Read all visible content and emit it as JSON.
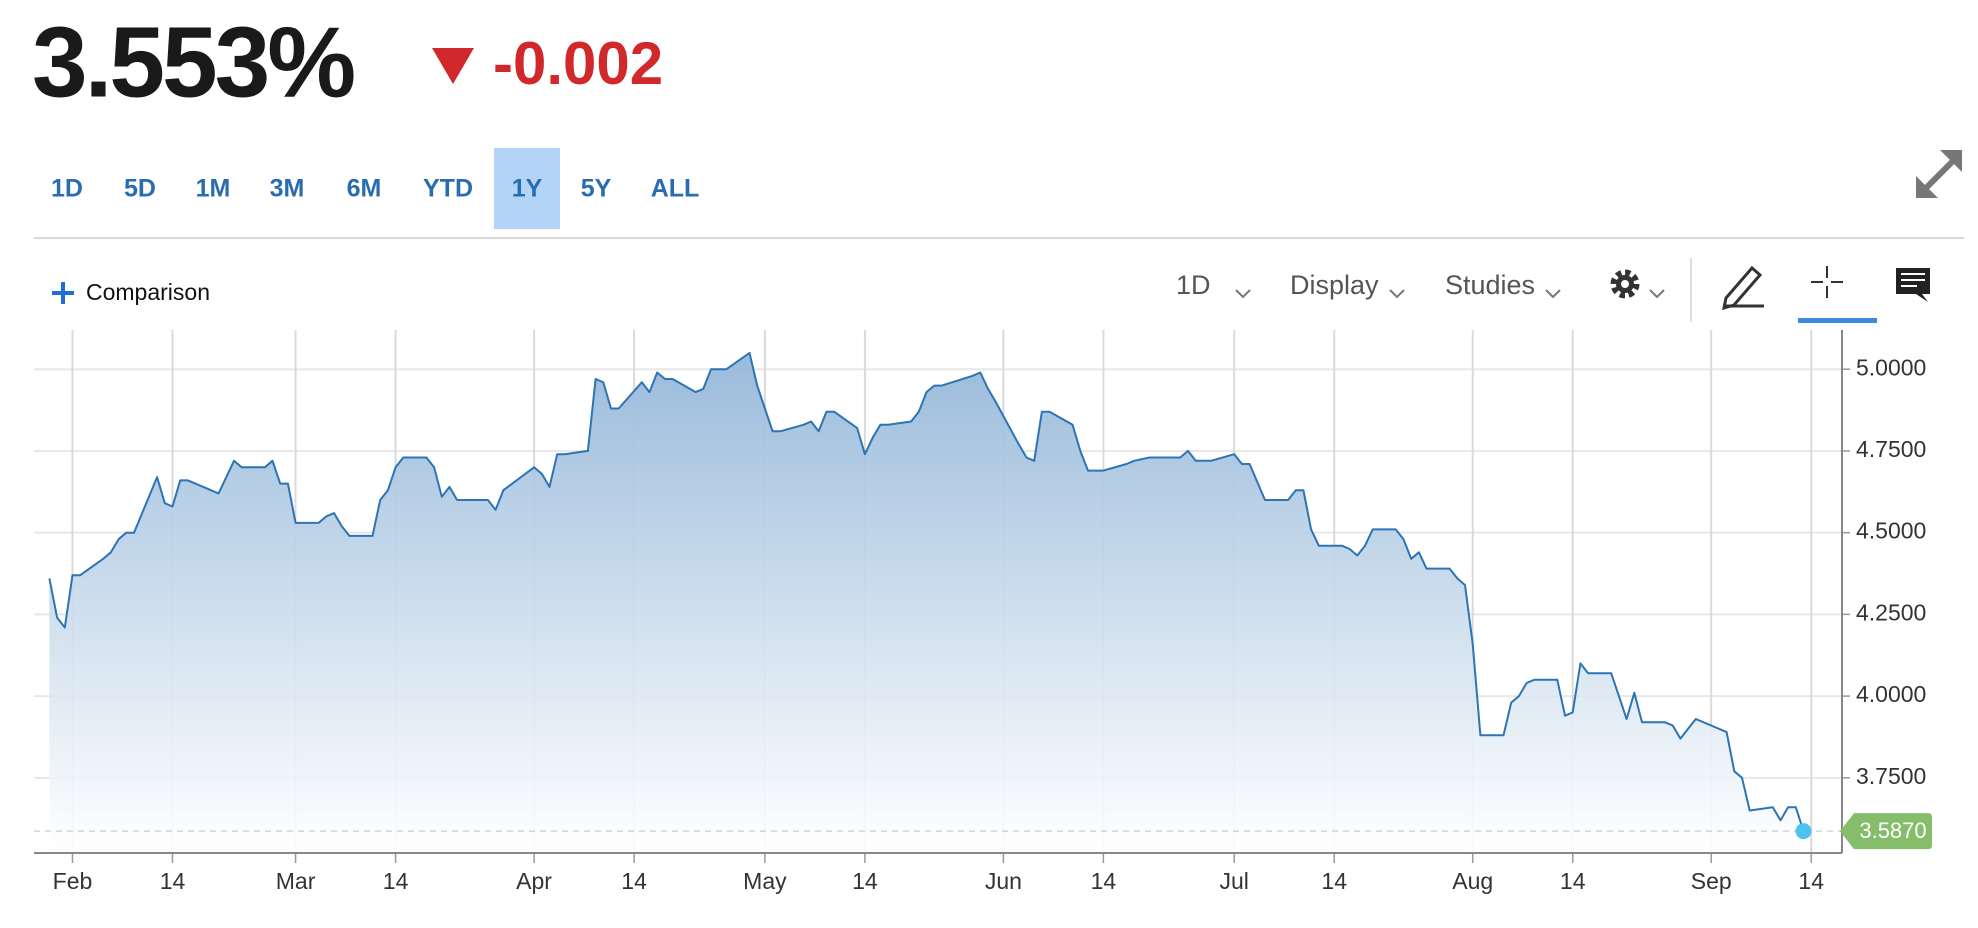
{
  "quote": {
    "price": "3.553%",
    "change": "-0.002"
  },
  "ranges": [
    "1D",
    "5D",
    "1M",
    "3M",
    "6M",
    "YTD",
    "1Y",
    "5Y",
    "ALL"
  ],
  "active_range": "1Y",
  "toolbar": {
    "comparison": "Comparison",
    "interval": "1D",
    "display": "Display",
    "studies": "Studies"
  },
  "chart_data": {
    "type": "area",
    "color": "#2c74b3",
    "x": [
      "01-29",
      "01-30",
      "01-31",
      "02-01",
      "02-02",
      "02-05",
      "02-06",
      "02-07",
      "02-08",
      "02-09",
      "02-12",
      "02-13",
      "02-14",
      "02-15",
      "02-16",
      "02-20",
      "02-21",
      "02-22",
      "02-23",
      "02-26",
      "02-27",
      "02-28",
      "02-29",
      "03-01",
      "03-04",
      "03-05",
      "03-06",
      "03-07",
      "03-08",
      "03-11",
      "03-12",
      "03-13",
      "03-14",
      "03-15",
      "03-18",
      "03-19",
      "03-20",
      "03-21",
      "03-22",
      "03-25",
      "03-26",
      "03-27",
      "03-28",
      "04-01",
      "04-02",
      "04-03",
      "04-04",
      "04-05",
      "04-08",
      "04-09",
      "04-10",
      "04-11",
      "04-12",
      "04-15",
      "04-16",
      "04-17",
      "04-18",
      "04-19",
      "04-22",
      "04-23",
      "04-24",
      "04-25",
      "04-26",
      "04-29",
      "04-30",
      "05-01",
      "05-02",
      "05-03",
      "05-06",
      "05-07",
      "05-08",
      "05-09",
      "05-10",
      "05-13",
      "05-14",
      "05-15",
      "05-16",
      "05-17",
      "05-20",
      "05-21",
      "05-22",
      "05-23",
      "05-24",
      "05-28",
      "05-29",
      "05-30",
      "05-31",
      "06-03",
      "06-04",
      "06-05",
      "06-06",
      "06-07",
      "06-10",
      "06-11",
      "06-12",
      "06-13",
      "06-14",
      "06-17",
      "06-18",
      "06-20",
      "06-21",
      "06-24",
      "06-25",
      "06-26",
      "06-27",
      "06-28",
      "07-01",
      "07-02",
      "07-03",
      "07-05",
      "07-08",
      "07-09",
      "07-10",
      "07-11",
      "07-12",
      "07-15",
      "07-16",
      "07-17",
      "07-18",
      "07-19",
      "07-22",
      "07-23",
      "07-24",
      "07-25",
      "07-26",
      "07-29",
      "07-30",
      "07-31",
      "08-01",
      "08-02",
      "08-05",
      "08-06",
      "08-07",
      "08-08",
      "08-09",
      "08-12",
      "08-13",
      "08-14",
      "08-15",
      "08-16",
      "08-19",
      "08-20",
      "08-21",
      "08-22",
      "08-23",
      "08-26",
      "08-27",
      "08-28",
      "08-29",
      "08-30",
      "09-03",
      "09-04",
      "09-05",
      "09-06",
      "09-09",
      "09-10",
      "09-11",
      "09-12",
      "09-13"
    ],
    "values": [
      4.36,
      4.24,
      4.21,
      4.37,
      4.37,
      4.42,
      4.44,
      4.48,
      4.5,
      4.5,
      4.67,
      4.59,
      4.58,
      4.66,
      4.66,
      4.62,
      4.67,
      4.72,
      4.7,
      4.7,
      4.72,
      4.65,
      4.65,
      4.53,
      4.53,
      4.55,
      4.56,
      4.52,
      4.49,
      4.49,
      4.6,
      4.63,
      4.7,
      4.73,
      4.73,
      4.7,
      4.61,
      4.64,
      4.6,
      4.6,
      4.6,
      4.57,
      4.63,
      4.7,
      4.68,
      4.64,
      4.74,
      4.74,
      4.75,
      4.97,
      4.96,
      4.88,
      4.88,
      4.96,
      4.93,
      4.99,
      4.97,
      4.97,
      4.93,
      4.94,
      5.0,
      5.0,
      5.0,
      5.05,
      4.95,
      4.88,
      4.81,
      4.81,
      4.83,
      4.84,
      4.81,
      4.87,
      4.87,
      4.82,
      4.74,
      4.79,
      4.83,
      4.83,
      4.84,
      4.87,
      4.93,
      4.95,
      4.95,
      4.98,
      4.99,
      4.94,
      4.9,
      4.77,
      4.73,
      4.72,
      4.87,
      4.87,
      4.83,
      4.75,
      4.69,
      4.69,
      4.69,
      4.71,
      4.72,
      4.73,
      4.73,
      4.73,
      4.75,
      4.72,
      4.72,
      4.72,
      4.74,
      4.71,
      4.71,
      4.6,
      4.6,
      4.63,
      4.63,
      4.51,
      4.46,
      4.46,
      4.45,
      4.43,
      4.46,
      4.51,
      4.51,
      4.48,
      4.42,
      4.44,
      4.39,
      4.39,
      4.36,
      4.34,
      4.16,
      3.88,
      3.88,
      3.98,
      4.0,
      4.04,
      4.05,
      4.05,
      3.94,
      3.95,
      4.1,
      4.07,
      4.07,
      4.0,
      3.93,
      4.01,
      3.92,
      3.92,
      3.91,
      3.87,
      3.9,
      3.93,
      3.89,
      3.77,
      3.75,
      3.65,
      3.66,
      3.62,
      3.66,
      3.66,
      3.587
    ],
    "xlim": [
      "01-27",
      "09-18"
    ],
    "ylim": [
      3.52,
      5.12
    ],
    "xticks": [
      {
        "value": "02-01",
        "label": "Feb"
      },
      {
        "value": "02-14",
        "label": "14"
      },
      {
        "value": "03-01",
        "label": "Mar"
      },
      {
        "value": "03-14",
        "label": "14"
      },
      {
        "value": "04-01",
        "label": "Apr"
      },
      {
        "value": "04-14",
        "label": "14"
      },
      {
        "value": "05-01",
        "label": "May"
      },
      {
        "value": "05-14",
        "label": "14"
      },
      {
        "value": "06-01",
        "label": "Jun"
      },
      {
        "value": "06-14",
        "label": "14"
      },
      {
        "value": "07-01",
        "label": "Jul"
      },
      {
        "value": "07-14",
        "label": "14"
      },
      {
        "value": "08-01",
        "label": "Aug"
      },
      {
        "value": "08-14",
        "label": "14"
      },
      {
        "value": "09-01",
        "label": "Sep"
      },
      {
        "value": "09-14",
        "label": "14"
      }
    ],
    "yticks": [
      {
        "value": 3.75,
        "label": "3.7500"
      },
      {
        "value": 4,
        "label": "4.0000"
      },
      {
        "value": 4.25,
        "label": "4.2500"
      },
      {
        "value": 4.5,
        "label": "4.5000"
      },
      {
        "value": 4.75,
        "label": "4.7500"
      },
      {
        "value": 5,
        "label": "5.0000"
      }
    ],
    "grid": true,
    "last": {
      "value": 3.587,
      "label": "3.5870",
      "color": "#86bd6a"
    }
  }
}
